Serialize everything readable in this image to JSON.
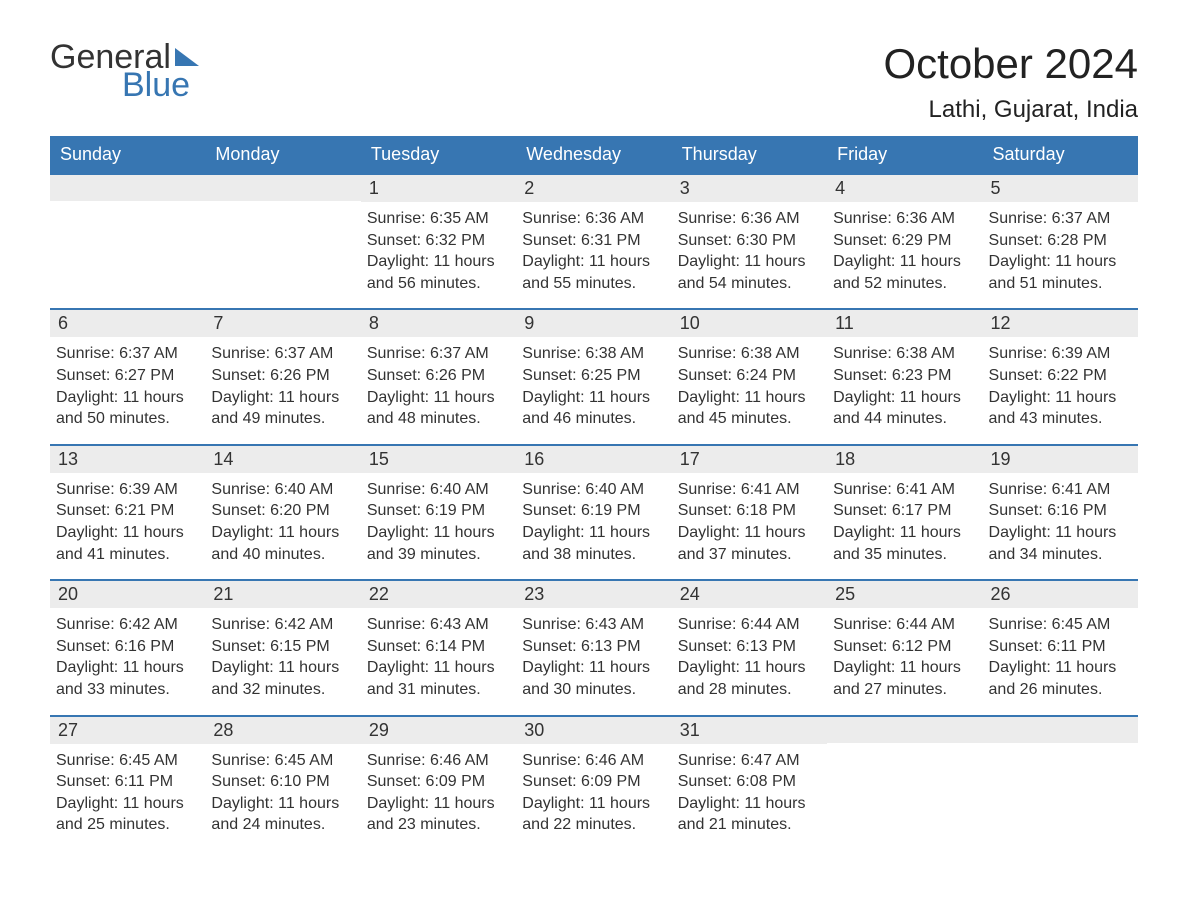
{
  "logo": {
    "word1": "General",
    "word2": "Blue"
  },
  "title": "October 2024",
  "location": "Lathi, Gujarat, India",
  "colors": {
    "header_bg": "#3776b2",
    "header_text": "#ffffff",
    "daynum_bg": "#ececec",
    "text": "#333333",
    "title": "#222222",
    "border": "#3776b2"
  },
  "fonts": {
    "title_pt": 42,
    "location_pt": 24,
    "weekday_pt": 18,
    "body_pt": 16
  },
  "weekdays": [
    "Sunday",
    "Monday",
    "Tuesday",
    "Wednesday",
    "Thursday",
    "Friday",
    "Saturday"
  ],
  "weeks": [
    [
      {
        "day": "",
        "sunrise": "",
        "sunset": "",
        "daylight1": "",
        "daylight2": ""
      },
      {
        "day": "",
        "sunrise": "",
        "sunset": "",
        "daylight1": "",
        "daylight2": ""
      },
      {
        "day": "1",
        "sunrise": "Sunrise: 6:35 AM",
        "sunset": "Sunset: 6:32 PM",
        "daylight1": "Daylight: 11 hours",
        "daylight2": "and 56 minutes."
      },
      {
        "day": "2",
        "sunrise": "Sunrise: 6:36 AM",
        "sunset": "Sunset: 6:31 PM",
        "daylight1": "Daylight: 11 hours",
        "daylight2": "and 55 minutes."
      },
      {
        "day": "3",
        "sunrise": "Sunrise: 6:36 AM",
        "sunset": "Sunset: 6:30 PM",
        "daylight1": "Daylight: 11 hours",
        "daylight2": "and 54 minutes."
      },
      {
        "day": "4",
        "sunrise": "Sunrise: 6:36 AM",
        "sunset": "Sunset: 6:29 PM",
        "daylight1": "Daylight: 11 hours",
        "daylight2": "and 52 minutes."
      },
      {
        "day": "5",
        "sunrise": "Sunrise: 6:37 AM",
        "sunset": "Sunset: 6:28 PM",
        "daylight1": "Daylight: 11 hours",
        "daylight2": "and 51 minutes."
      }
    ],
    [
      {
        "day": "6",
        "sunrise": "Sunrise: 6:37 AM",
        "sunset": "Sunset: 6:27 PM",
        "daylight1": "Daylight: 11 hours",
        "daylight2": "and 50 minutes."
      },
      {
        "day": "7",
        "sunrise": "Sunrise: 6:37 AM",
        "sunset": "Sunset: 6:26 PM",
        "daylight1": "Daylight: 11 hours",
        "daylight2": "and 49 minutes."
      },
      {
        "day": "8",
        "sunrise": "Sunrise: 6:37 AM",
        "sunset": "Sunset: 6:26 PM",
        "daylight1": "Daylight: 11 hours",
        "daylight2": "and 48 minutes."
      },
      {
        "day": "9",
        "sunrise": "Sunrise: 6:38 AM",
        "sunset": "Sunset: 6:25 PM",
        "daylight1": "Daylight: 11 hours",
        "daylight2": "and 46 minutes."
      },
      {
        "day": "10",
        "sunrise": "Sunrise: 6:38 AM",
        "sunset": "Sunset: 6:24 PM",
        "daylight1": "Daylight: 11 hours",
        "daylight2": "and 45 minutes."
      },
      {
        "day": "11",
        "sunrise": "Sunrise: 6:38 AM",
        "sunset": "Sunset: 6:23 PM",
        "daylight1": "Daylight: 11 hours",
        "daylight2": "and 44 minutes."
      },
      {
        "day": "12",
        "sunrise": "Sunrise: 6:39 AM",
        "sunset": "Sunset: 6:22 PM",
        "daylight1": "Daylight: 11 hours",
        "daylight2": "and 43 minutes."
      }
    ],
    [
      {
        "day": "13",
        "sunrise": "Sunrise: 6:39 AM",
        "sunset": "Sunset: 6:21 PM",
        "daylight1": "Daylight: 11 hours",
        "daylight2": "and 41 minutes."
      },
      {
        "day": "14",
        "sunrise": "Sunrise: 6:40 AM",
        "sunset": "Sunset: 6:20 PM",
        "daylight1": "Daylight: 11 hours",
        "daylight2": "and 40 minutes."
      },
      {
        "day": "15",
        "sunrise": "Sunrise: 6:40 AM",
        "sunset": "Sunset: 6:19 PM",
        "daylight1": "Daylight: 11 hours",
        "daylight2": "and 39 minutes."
      },
      {
        "day": "16",
        "sunrise": "Sunrise: 6:40 AM",
        "sunset": "Sunset: 6:19 PM",
        "daylight1": "Daylight: 11 hours",
        "daylight2": "and 38 minutes."
      },
      {
        "day": "17",
        "sunrise": "Sunrise: 6:41 AM",
        "sunset": "Sunset: 6:18 PM",
        "daylight1": "Daylight: 11 hours",
        "daylight2": "and 37 minutes."
      },
      {
        "day": "18",
        "sunrise": "Sunrise: 6:41 AM",
        "sunset": "Sunset: 6:17 PM",
        "daylight1": "Daylight: 11 hours",
        "daylight2": "and 35 minutes."
      },
      {
        "day": "19",
        "sunrise": "Sunrise: 6:41 AM",
        "sunset": "Sunset: 6:16 PM",
        "daylight1": "Daylight: 11 hours",
        "daylight2": "and 34 minutes."
      }
    ],
    [
      {
        "day": "20",
        "sunrise": "Sunrise: 6:42 AM",
        "sunset": "Sunset: 6:16 PM",
        "daylight1": "Daylight: 11 hours",
        "daylight2": "and 33 minutes."
      },
      {
        "day": "21",
        "sunrise": "Sunrise: 6:42 AM",
        "sunset": "Sunset: 6:15 PM",
        "daylight1": "Daylight: 11 hours",
        "daylight2": "and 32 minutes."
      },
      {
        "day": "22",
        "sunrise": "Sunrise: 6:43 AM",
        "sunset": "Sunset: 6:14 PM",
        "daylight1": "Daylight: 11 hours",
        "daylight2": "and 31 minutes."
      },
      {
        "day": "23",
        "sunrise": "Sunrise: 6:43 AM",
        "sunset": "Sunset: 6:13 PM",
        "daylight1": "Daylight: 11 hours",
        "daylight2": "and 30 minutes."
      },
      {
        "day": "24",
        "sunrise": "Sunrise: 6:44 AM",
        "sunset": "Sunset: 6:13 PM",
        "daylight1": "Daylight: 11 hours",
        "daylight2": "and 28 minutes."
      },
      {
        "day": "25",
        "sunrise": "Sunrise: 6:44 AM",
        "sunset": "Sunset: 6:12 PM",
        "daylight1": "Daylight: 11 hours",
        "daylight2": "and 27 minutes."
      },
      {
        "day": "26",
        "sunrise": "Sunrise: 6:45 AM",
        "sunset": "Sunset: 6:11 PM",
        "daylight1": "Daylight: 11 hours",
        "daylight2": "and 26 minutes."
      }
    ],
    [
      {
        "day": "27",
        "sunrise": "Sunrise: 6:45 AM",
        "sunset": "Sunset: 6:11 PM",
        "daylight1": "Daylight: 11 hours",
        "daylight2": "and 25 minutes."
      },
      {
        "day": "28",
        "sunrise": "Sunrise: 6:45 AM",
        "sunset": "Sunset: 6:10 PM",
        "daylight1": "Daylight: 11 hours",
        "daylight2": "and 24 minutes."
      },
      {
        "day": "29",
        "sunrise": "Sunrise: 6:46 AM",
        "sunset": "Sunset: 6:09 PM",
        "daylight1": "Daylight: 11 hours",
        "daylight2": "and 23 minutes."
      },
      {
        "day": "30",
        "sunrise": "Sunrise: 6:46 AM",
        "sunset": "Sunset: 6:09 PM",
        "daylight1": "Daylight: 11 hours",
        "daylight2": "and 22 minutes."
      },
      {
        "day": "31",
        "sunrise": "Sunrise: 6:47 AM",
        "sunset": "Sunset: 6:08 PM",
        "daylight1": "Daylight: 11 hours",
        "daylight2": "and 21 minutes."
      },
      {
        "day": "",
        "sunrise": "",
        "sunset": "",
        "daylight1": "",
        "daylight2": ""
      },
      {
        "day": "",
        "sunrise": "",
        "sunset": "",
        "daylight1": "",
        "daylight2": ""
      }
    ]
  ]
}
